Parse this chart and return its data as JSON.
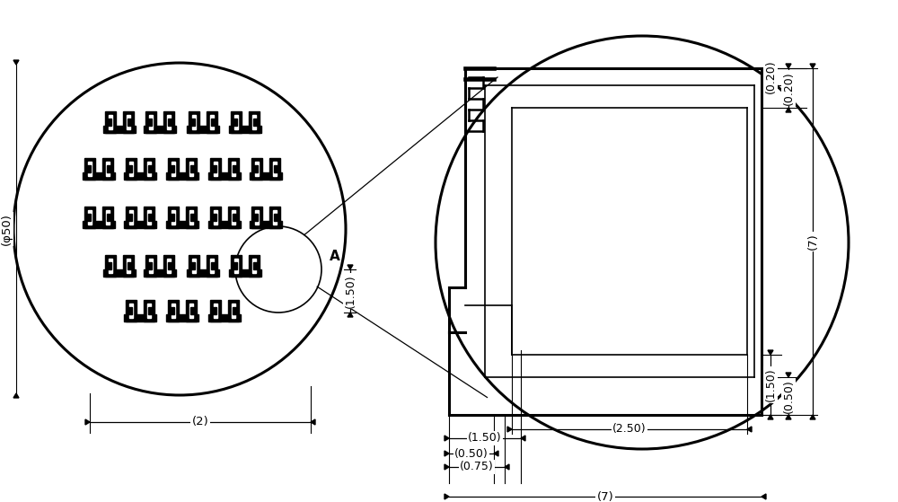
{
  "bg_color": "#ffffff",
  "line_color": "#000000",
  "figsize": [
    10.0,
    5.59
  ],
  "dpi": 100,
  "labels": {
    "phi50": "(φ50)",
    "dim2": "(2)",
    "dim150_left": "(1.50)",
    "dim150_right": "(1.50)",
    "dim050_right": "(0.50)",
    "dim075": "(0.75)",
    "dim7_bottom": "(7)",
    "dim250": "(2.50)",
    "dim020_inner": "(0.20)",
    "dim020_outer": "(0.20)",
    "dim7_right": "(7)",
    "dim150_v": "(1.50)",
    "dim050_v": "(0.50)",
    "label_A": "A"
  }
}
